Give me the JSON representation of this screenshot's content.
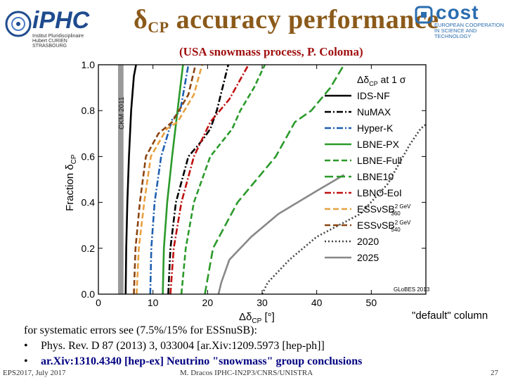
{
  "header": {
    "title_main": "δ",
    "title_sub": "CP",
    "title_rest": " accuracy performance",
    "subtitle": "(USA snowmass process, P. Coloma)"
  },
  "logos": {
    "iphc": "iPHC",
    "iphc_small": "Institut Pluridisciplinaire Hubert CURIEN STRASBOURG",
    "cost": "cost",
    "cost_small": "EUROPEAN COOPERATION IN SCIENCE AND TECHNOLOGY"
  },
  "notes": {
    "default_column": "\"default\" column",
    "line1": "for systematic errors see (7.5%/15% for ESSnuSB):",
    "bullet1": "•",
    "line2": "Phys. Rev. D 87  (2013) 3, 033004 [ar.Xiv:1209.5973 [hep-ph]]",
    "bullet2": "•",
    "line3": "ar.Xiv:1310.4340 [hep-ex] Neutrino \"snowmass\" group conclusions"
  },
  "footer": {
    "left": "EPS2017, July 2017",
    "center": "M. Dracos IPHC-IN2P3/CNRS/UNISTRA",
    "page": "27"
  },
  "chart_data": {
    "type": "line",
    "xlabel": "Δδ",
    "xlabel_sub": "CP",
    "xlabel_unit": " [°]",
    "ylabel": "Fraction δ",
    "ylabel_sub": "CP",
    "xlim": [
      0,
      60
    ],
    "ylim": [
      0,
      1
    ],
    "xticks": [
      0,
      10,
      20,
      30,
      40,
      50
    ],
    "yticks": [
      0.0,
      0.2,
      0.4,
      0.6,
      0.8,
      1.0
    ],
    "xtick_labels": [
      "0",
      "10",
      "20",
      "30",
      "40",
      "50"
    ],
    "ytick_labels": [
      "0.0",
      "0.2",
      "0.4",
      "0.6",
      "0.8",
      "1.0"
    ],
    "legend_title": "Δδ",
    "legend_title_sub": "CP",
    "legend_title_rest": " at 1 σ",
    "legend_position": "right",
    "band": {
      "label": "CKM 2011",
      "x": [
        3.6,
        4.6
      ],
      "color": "#999999"
    },
    "watermark": "GLoBES 2013",
    "series": [
      {
        "name": "IDS-NF",
        "color": "#000000",
        "dash": "solid",
        "points": [
          [
            5.0,
            0
          ],
          [
            5.1,
            0.2
          ],
          [
            5.3,
            0.4
          ],
          [
            5.6,
            0.6
          ],
          [
            6.0,
            0.8
          ],
          [
            6.5,
            0.95
          ],
          [
            6.9,
            1.0
          ]
        ]
      },
      {
        "name": "NuMAX",
        "color": "#000000",
        "dash": "dashdot",
        "points": [
          [
            12.8,
            0
          ],
          [
            13.2,
            0.2
          ],
          [
            14.2,
            0.4
          ],
          [
            16.5,
            0.6
          ],
          [
            19.0,
            0.67
          ],
          [
            20.5,
            0.72
          ],
          [
            21.7,
            0.8
          ],
          [
            23.8,
            1.0
          ]
        ]
      },
      {
        "name": "Hyper-K",
        "color": "#1f5fb0",
        "dash": "dashdot",
        "points": [
          [
            9.5,
            0
          ],
          [
            9.7,
            0.2
          ],
          [
            10.3,
            0.4
          ],
          [
            11.5,
            0.6
          ],
          [
            13.5,
            0.76
          ],
          [
            15.0,
            0.8
          ],
          [
            16.5,
            1.0
          ]
        ]
      },
      {
        "name": "LBNE-PX",
        "color": "#2a9a2a",
        "dash": "solid",
        "points": [
          [
            11.8,
            0
          ],
          [
            12.0,
            0.2
          ],
          [
            12.6,
            0.4
          ],
          [
            13.5,
            0.6
          ],
          [
            14.5,
            0.8
          ],
          [
            15.5,
            1.0
          ]
        ]
      },
      {
        "name": "LBNE-Full",
        "color": "#2a9a2a",
        "dash": "dash",
        "points": [
          [
            15.2,
            0
          ],
          [
            16.0,
            0.2
          ],
          [
            17.5,
            0.4
          ],
          [
            20.5,
            0.6
          ],
          [
            24.5,
            0.72
          ],
          [
            26.0,
            0.8
          ],
          [
            28.5,
            0.9
          ],
          [
            30.5,
            1.0
          ]
        ]
      },
      {
        "name": "LBNE10",
        "color": "#2a9a2a",
        "dash": "longdash",
        "points": [
          [
            19.5,
            0
          ],
          [
            21.0,
            0.2
          ],
          [
            25.5,
            0.4
          ],
          [
            32.5,
            0.6
          ],
          [
            36.0,
            0.75
          ],
          [
            39.0,
            0.8
          ],
          [
            42.5,
            0.9
          ],
          [
            45.0,
            1.0
          ]
        ]
      },
      {
        "name": "LBNO-EoI",
        "color": "#c01010",
        "dash": "dashdot",
        "points": [
          [
            13.2,
            0
          ],
          [
            13.8,
            0.2
          ],
          [
            15.2,
            0.4
          ],
          [
            17.5,
            0.6
          ],
          [
            20.5,
            0.75
          ],
          [
            24.0,
            0.85
          ],
          [
            27.5,
            1.0
          ]
        ]
      },
      {
        "name": "ESSνSB 2 GeV 360",
        "color": "#e8a040",
        "dash": "dash",
        "points": [
          [
            7.0,
            0
          ],
          [
            7.4,
            0.2
          ],
          [
            8.4,
            0.4
          ],
          [
            9.6,
            0.6
          ],
          [
            12.5,
            0.72
          ],
          [
            14.5,
            0.75
          ],
          [
            17.5,
            0.87
          ],
          [
            19.0,
            1.0
          ]
        ]
      },
      {
        "name": "ESSνSB 2 GeV 540",
        "color": "#8b4513",
        "dash": "dash",
        "points": [
          [
            6.5,
            0
          ],
          [
            6.8,
            0.2
          ],
          [
            7.6,
            0.4
          ],
          [
            8.7,
            0.6
          ],
          [
            11.0,
            0.7
          ],
          [
            13.5,
            0.75
          ],
          [
            16.5,
            0.87
          ],
          [
            17.8,
            1.0
          ]
        ]
      },
      {
        "name": "2020",
        "color": "#444444",
        "dash": "dot",
        "points": [
          [
            30.0,
            0
          ],
          [
            31.0,
            0.05
          ],
          [
            35.0,
            0.15
          ],
          [
            40.0,
            0.25
          ],
          [
            48.0,
            0.35
          ],
          [
            53.0,
            0.48
          ],
          [
            57.0,
            0.65
          ],
          [
            59.0,
            0.72
          ],
          [
            60.0,
            0.74
          ]
        ]
      },
      {
        "name": "2025",
        "color": "#888888",
        "dash": "solid",
        "points": [
          [
            22.0,
            0
          ],
          [
            22.5,
            0.05
          ],
          [
            24.0,
            0.15
          ],
          [
            28.0,
            0.25
          ],
          [
            33.0,
            0.35
          ],
          [
            40.0,
            0.45
          ],
          [
            45.0,
            0.52
          ]
        ]
      }
    ]
  }
}
